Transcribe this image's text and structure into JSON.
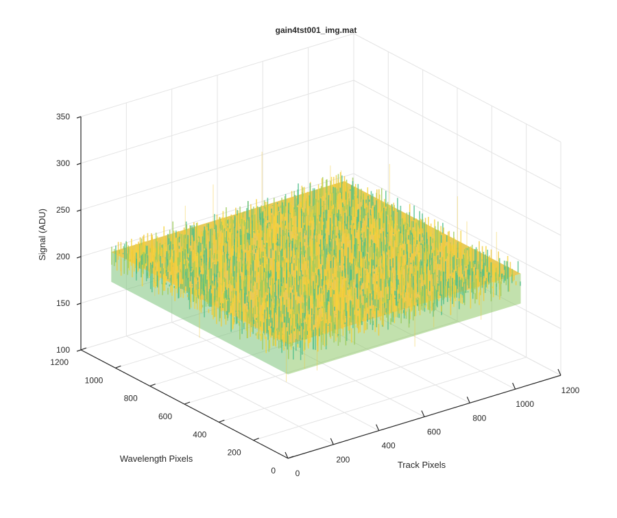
{
  "chart_data": {
    "type": "surface",
    "title": "gain4tst001_img.mat",
    "xlabel": "Track Pixels",
    "ylabel": "Wavelength Pixels",
    "zlabel": "Signal (ADU)",
    "xlim": [
      0,
      1200
    ],
    "ylim": [
      0,
      1200
    ],
    "zlim": [
      100,
      350
    ],
    "xticks": [
      0,
      200,
      400,
      600,
      800,
      1000,
      1200
    ],
    "yticks": [
      0,
      200,
      400,
      600,
      800,
      1000,
      1200
    ],
    "zticks": [
      100,
      150,
      200,
      250,
      300,
      350
    ],
    "grid": true,
    "surface": {
      "x_extent": [
        0,
        1024
      ],
      "y_extent": [
        0,
        1024
      ],
      "mean_signal": 222,
      "noise_range": [
        200,
        245
      ],
      "colormap": [
        "#4cbe8a",
        "#9ccc5a",
        "#f0c93a",
        "#f5d23a"
      ]
    }
  }
}
